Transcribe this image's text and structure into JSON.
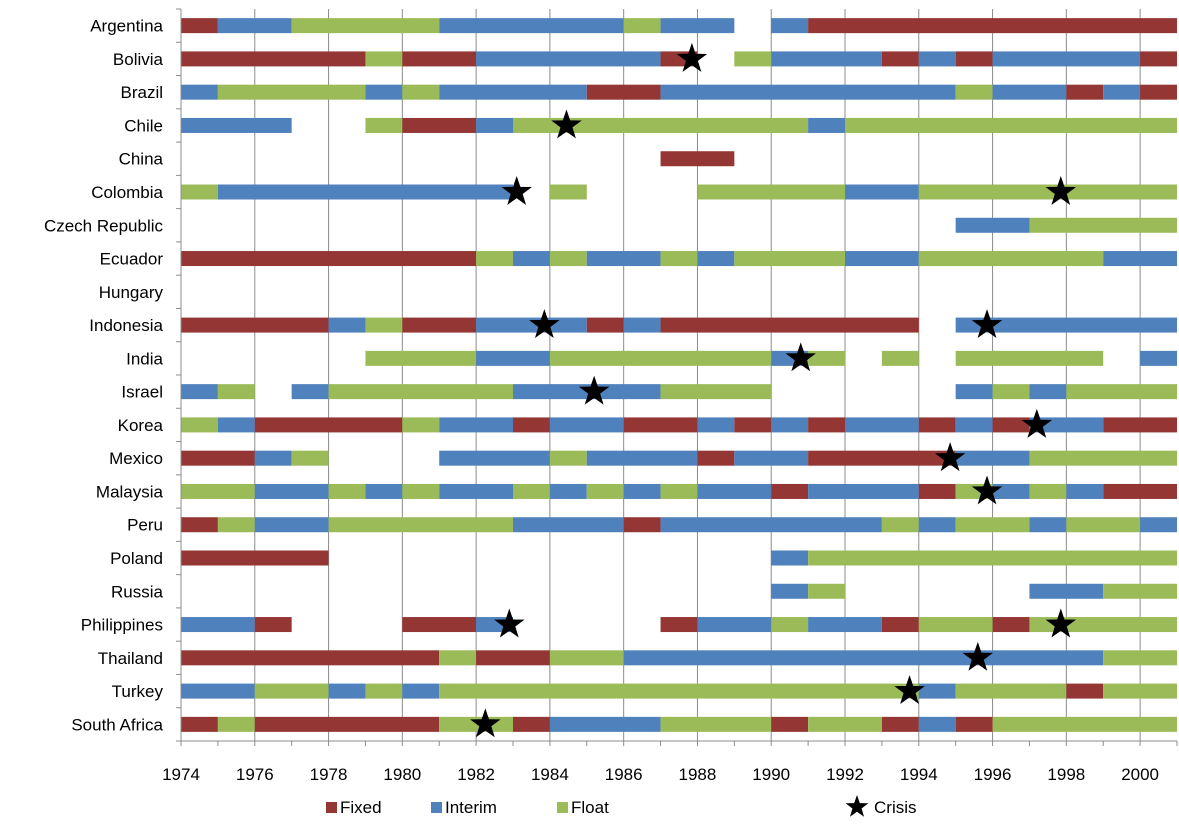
{
  "chart_data": {
    "type": "bar",
    "subtype": "timeline",
    "title": "",
    "xlabel": "",
    "ylabel": "",
    "xlim": [
      1974,
      2001
    ],
    "x_ticks": [
      "1974",
      "1976",
      "1978",
      "1980",
      "1982",
      "1984",
      "1986",
      "1988",
      "1990",
      "1992",
      "1994",
      "1996",
      "1998",
      "2000"
    ],
    "grid": "vertical",
    "legend_placement": "bottom",
    "legend": [
      {
        "key": "F",
        "label": "Fixed",
        "color": "#943634",
        "marker": "square"
      },
      {
        "key": "I",
        "label": "Interim",
        "color": "#4f81bd",
        "marker": "square"
      },
      {
        "key": "L",
        "label": "Float",
        "color": "#9bbb59",
        "marker": "square"
      },
      {
        "key": "C",
        "label": "Crisis",
        "color": "#000000",
        "marker": "star"
      }
    ],
    "countries": [
      {
        "name": "Argentina",
        "segments": [
          [
            1974,
            1975,
            "F"
          ],
          [
            1975,
            1977,
            "I"
          ],
          [
            1977,
            1981,
            "L"
          ],
          [
            1981,
            1986,
            "I"
          ],
          [
            1986,
            1987,
            "L"
          ],
          [
            1987,
            1989,
            "I"
          ],
          [
            1990,
            1991,
            "I"
          ],
          [
            1991,
            2001,
            "F"
          ]
        ],
        "crises": []
      },
      {
        "name": "Bolivia",
        "segments": [
          [
            1974,
            1979,
            "F"
          ],
          [
            1979,
            1980,
            "L"
          ],
          [
            1980,
            1982,
            "F"
          ],
          [
            1982,
            1987,
            "I"
          ],
          [
            1987,
            1988,
            "F"
          ],
          [
            1989,
            1990,
            "L"
          ],
          [
            1990,
            1993,
            "I"
          ],
          [
            1993,
            1994,
            "F"
          ],
          [
            1994,
            1995,
            "I"
          ],
          [
            1995,
            1996,
            "F"
          ],
          [
            1996,
            2000,
            "I"
          ],
          [
            2000,
            2001,
            "F"
          ]
        ],
        "crises": [
          1987.85
        ]
      },
      {
        "name": "Brazil",
        "segments": [
          [
            1974,
            1975,
            "I"
          ],
          [
            1975,
            1979,
            "L"
          ],
          [
            1979,
            1980,
            "I"
          ],
          [
            1980,
            1981,
            "L"
          ],
          [
            1981,
            1985,
            "I"
          ],
          [
            1985,
            1987,
            "F"
          ],
          [
            1987,
            1995,
            "I"
          ],
          [
            1995,
            1996,
            "L"
          ],
          [
            1996,
            1998,
            "I"
          ],
          [
            1998,
            1999,
            "F"
          ],
          [
            1999,
            2000,
            "I"
          ],
          [
            2000,
            2001,
            "F"
          ]
        ],
        "crises": []
      },
      {
        "name": "Chile",
        "segments": [
          [
            1974,
            1977,
            "I"
          ],
          [
            1979,
            1980,
            "L"
          ],
          [
            1980,
            1982,
            "F"
          ],
          [
            1982,
            1983,
            "I"
          ],
          [
            1983,
            1991,
            "L"
          ],
          [
            1991,
            1992,
            "I"
          ],
          [
            1992,
            2001,
            "L"
          ]
        ],
        "crises": [
          1984.45
        ]
      },
      {
        "name": "China",
        "segments": [
          [
            1987,
            1989,
            "F"
          ]
        ],
        "crises": []
      },
      {
        "name": "Colombia",
        "segments": [
          [
            1974,
            1975,
            "L"
          ],
          [
            1975,
            1983,
            "I"
          ],
          [
            1984,
            1985,
            "L"
          ],
          [
            1988,
            1992,
            "L"
          ],
          [
            1992,
            1994,
            "I"
          ],
          [
            1994,
            2001,
            "L"
          ]
        ],
        "crises": [
          1983.1,
          1997.85
        ]
      },
      {
        "name": "Czech Republic",
        "segments": [
          [
            1995,
            1997,
            "I"
          ],
          [
            1997,
            2001,
            "L"
          ]
        ],
        "crises": []
      },
      {
        "name": "Ecuador",
        "segments": [
          [
            1974,
            1982,
            "F"
          ],
          [
            1982,
            1983,
            "L"
          ],
          [
            1983,
            1984,
            "I"
          ],
          [
            1984,
            1985,
            "L"
          ],
          [
            1985,
            1987,
            "I"
          ],
          [
            1987,
            1988,
            "L"
          ],
          [
            1988,
            1989,
            "I"
          ],
          [
            1989,
            1992,
            "L"
          ],
          [
            1992,
            1994,
            "I"
          ],
          [
            1994,
            1999,
            "L"
          ],
          [
            1999,
            2001,
            "I"
          ]
        ],
        "crises": []
      },
      {
        "name": "Hungary",
        "segments": [],
        "crises": []
      },
      {
        "name": "Indonesia",
        "segments": [
          [
            1974,
            1978,
            "F"
          ],
          [
            1978,
            1979,
            "I"
          ],
          [
            1979,
            1980,
            "L"
          ],
          [
            1980,
            1982,
            "F"
          ],
          [
            1982,
            1985,
            "I"
          ],
          [
            1985,
            1986,
            "F"
          ],
          [
            1986,
            1987,
            "I"
          ],
          [
            1987,
            1994,
            "F"
          ],
          [
            1995,
            2001,
            "I"
          ]
        ],
        "crises": [
          1983.85,
          1995.85
        ]
      },
      {
        "name": "India",
        "segments": [
          [
            1979,
            1982,
            "L"
          ],
          [
            1982,
            1984,
            "I"
          ],
          [
            1984,
            1990,
            "L"
          ],
          [
            1990,
            1991,
            "I"
          ],
          [
            1991,
            1992,
            "L"
          ],
          [
            1993,
            1994,
            "L"
          ],
          [
            1995,
            1999,
            "L"
          ],
          [
            2000,
            2001,
            "I"
          ]
        ],
        "crises": [
          1990.8
        ]
      },
      {
        "name": "Israel",
        "segments": [
          [
            1974,
            1975,
            "I"
          ],
          [
            1975,
            1976,
            "L"
          ],
          [
            1977,
            1978,
            "I"
          ],
          [
            1978,
            1983,
            "L"
          ],
          [
            1983,
            1987,
            "I"
          ],
          [
            1987,
            1990,
            "L"
          ],
          [
            1995,
            1996,
            "I"
          ],
          [
            1996,
            1997,
            "L"
          ],
          [
            1997,
            1998,
            "I"
          ],
          [
            1998,
            2001,
            "L"
          ]
        ],
        "crises": [
          1985.2
        ]
      },
      {
        "name": "Korea",
        "segments": [
          [
            1974,
            1975,
            "L"
          ],
          [
            1975,
            1976,
            "I"
          ],
          [
            1976,
            1980,
            "F"
          ],
          [
            1980,
            1981,
            "L"
          ],
          [
            1981,
            1983,
            "I"
          ],
          [
            1983,
            1984,
            "F"
          ],
          [
            1984,
            1986,
            "I"
          ],
          [
            1986,
            1988,
            "F"
          ],
          [
            1988,
            1989,
            "I"
          ],
          [
            1989,
            1990,
            "F"
          ],
          [
            1990,
            1991,
            "I"
          ],
          [
            1991,
            1992,
            "F"
          ],
          [
            1992,
            1994,
            "I"
          ],
          [
            1994,
            1995,
            "F"
          ],
          [
            1995,
            1996,
            "I"
          ],
          [
            1996,
            1997,
            "F"
          ],
          [
            1997,
            1999,
            "I"
          ],
          [
            1999,
            2001,
            "F"
          ]
        ],
        "crises": [
          1997.2
        ]
      },
      {
        "name": "Mexico",
        "segments": [
          [
            1974,
            1976,
            "F"
          ],
          [
            1976,
            1977,
            "I"
          ],
          [
            1977,
            1978,
            "L"
          ],
          [
            1981,
            1984,
            "I"
          ],
          [
            1984,
            1985,
            "L"
          ],
          [
            1985,
            1988,
            "I"
          ],
          [
            1988,
            1989,
            "F"
          ],
          [
            1989,
            1991,
            "I"
          ],
          [
            1991,
            1995,
            "F"
          ],
          [
            1995,
            1997,
            "I"
          ],
          [
            1997,
            2001,
            "L"
          ]
        ],
        "crises": [
          1994.85
        ]
      },
      {
        "name": "Malaysia",
        "segments": [
          [
            1974,
            1976,
            "L"
          ],
          [
            1976,
            1978,
            "I"
          ],
          [
            1978,
            1979,
            "L"
          ],
          [
            1979,
            1980,
            "I"
          ],
          [
            1980,
            1981,
            "L"
          ],
          [
            1981,
            1983,
            "I"
          ],
          [
            1983,
            1984,
            "L"
          ],
          [
            1984,
            1985,
            "I"
          ],
          [
            1985,
            1986,
            "L"
          ],
          [
            1986,
            1987,
            "I"
          ],
          [
            1987,
            1988,
            "L"
          ],
          [
            1988,
            1990,
            "I"
          ],
          [
            1990,
            1991,
            "F"
          ],
          [
            1991,
            1994,
            "I"
          ],
          [
            1994,
            1995,
            "F"
          ],
          [
            1995,
            1996,
            "L"
          ],
          [
            1996,
            1997,
            "I"
          ],
          [
            1997,
            1998,
            "L"
          ],
          [
            1998,
            1999,
            "I"
          ],
          [
            1999,
            2001,
            "F"
          ]
        ],
        "crises": [
          1995.85
        ]
      },
      {
        "name": "Peru",
        "segments": [
          [
            1974,
            1975,
            "F"
          ],
          [
            1975,
            1976,
            "L"
          ],
          [
            1976,
            1978,
            "I"
          ],
          [
            1978,
            1983,
            "L"
          ],
          [
            1983,
            1986,
            "I"
          ],
          [
            1986,
            1987,
            "F"
          ],
          [
            1987,
            1993,
            "I"
          ],
          [
            1993,
            1994,
            "L"
          ],
          [
            1994,
            1995,
            "I"
          ],
          [
            1995,
            1997,
            "L"
          ],
          [
            1997,
            1998,
            "I"
          ],
          [
            1998,
            2000,
            "L"
          ],
          [
            2000,
            2001,
            "I"
          ]
        ],
        "crises": []
      },
      {
        "name": "Poland",
        "segments": [
          [
            1974,
            1978,
            "F"
          ],
          [
            1990,
            1991,
            "I"
          ],
          [
            1991,
            2001,
            "L"
          ]
        ],
        "crises": []
      },
      {
        "name": "Russia",
        "segments": [
          [
            1990,
            1991,
            "I"
          ],
          [
            1991,
            1992,
            "L"
          ],
          [
            1997,
            1999,
            "I"
          ],
          [
            1999,
            2001,
            "L"
          ]
        ],
        "crises": []
      },
      {
        "name": "Philippines",
        "segments": [
          [
            1974,
            1976,
            "I"
          ],
          [
            1976,
            1977,
            "F"
          ],
          [
            1980,
            1982,
            "F"
          ],
          [
            1982,
            1983,
            "I"
          ],
          [
            1987,
            1988,
            "F"
          ],
          [
            1988,
            1990,
            "I"
          ],
          [
            1990,
            1991,
            "L"
          ],
          [
            1991,
            1993,
            "I"
          ],
          [
            1993,
            1994,
            "F"
          ],
          [
            1994,
            1996,
            "L"
          ],
          [
            1996,
            1997,
            "F"
          ],
          [
            1997,
            2001,
            "L"
          ]
        ],
        "crises": [
          1982.9,
          1997.85
        ]
      },
      {
        "name": "Thailand",
        "segments": [
          [
            1974,
            1981,
            "F"
          ],
          [
            1981,
            1982,
            "L"
          ],
          [
            1982,
            1984,
            "F"
          ],
          [
            1984,
            1986,
            "L"
          ],
          [
            1986,
            1999,
            "I"
          ],
          [
            1999,
            2001,
            "L"
          ]
        ],
        "crises": [
          1995.6
        ]
      },
      {
        "name": "Turkey",
        "segments": [
          [
            1974,
            1976,
            "I"
          ],
          [
            1976,
            1978,
            "L"
          ],
          [
            1978,
            1979,
            "I"
          ],
          [
            1979,
            1980,
            "L"
          ],
          [
            1980,
            1981,
            "I"
          ],
          [
            1981,
            1994,
            "L"
          ],
          [
            1994,
            1995,
            "I"
          ],
          [
            1995,
            1998,
            "L"
          ],
          [
            1998,
            1999,
            "F"
          ],
          [
            1999,
            2001,
            "L"
          ]
        ],
        "crises": [
          1993.75
        ]
      },
      {
        "name": "South Africa",
        "segments": [
          [
            1974,
            1975,
            "F"
          ],
          [
            1975,
            1976,
            "L"
          ],
          [
            1976,
            1981,
            "F"
          ],
          [
            1981,
            1983,
            "L"
          ],
          [
            1983,
            1984,
            "F"
          ],
          [
            1984,
            1987,
            "I"
          ],
          [
            1987,
            1990,
            "L"
          ],
          [
            1990,
            1991,
            "F"
          ],
          [
            1991,
            1993,
            "L"
          ],
          [
            1993,
            1994,
            "F"
          ],
          [
            1994,
            1995,
            "I"
          ],
          [
            1995,
            1996,
            "F"
          ],
          [
            1996,
            2001,
            "L"
          ]
        ],
        "crises": [
          1982.25
        ]
      }
    ]
  }
}
